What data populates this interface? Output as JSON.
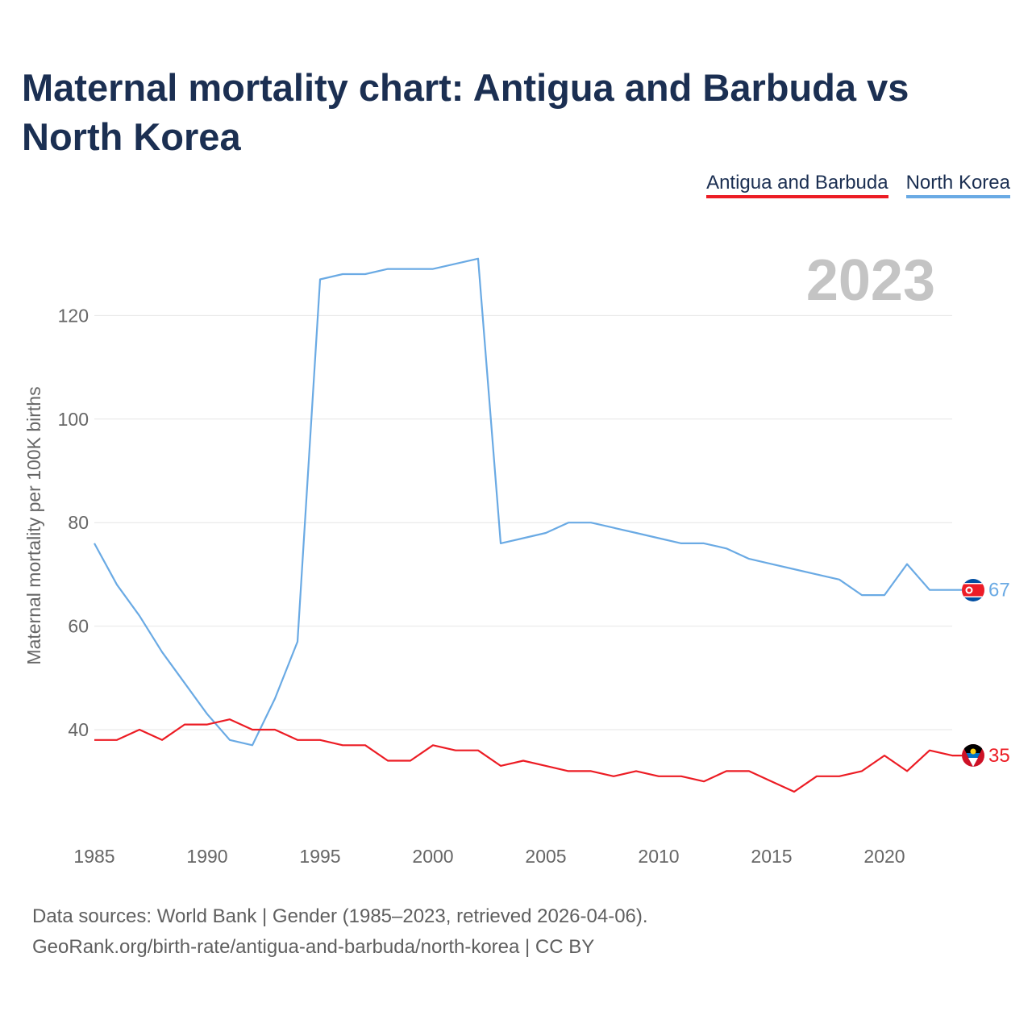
{
  "title": "Maternal mortality chart: Antigua and Barbuda vs North Korea",
  "legend": [
    {
      "name": "Antigua and Barbuda",
      "color": "#ec1c24"
    },
    {
      "name": "North Korea",
      "color": "#6aaae4"
    }
  ],
  "chart_data": {
    "type": "line",
    "title": "Maternal mortality chart: Antigua and Barbuda vs North Korea",
    "ylabel": "Maternal mortality per 100K births",
    "xlabel": "",
    "year_label": "2023",
    "xlim": [
      1985,
      2023
    ],
    "ylim": [
      20,
      140
    ],
    "xticks": [
      1985,
      1990,
      1995,
      2000,
      2005,
      2010,
      2015,
      2020
    ],
    "yticks": [
      40,
      60,
      80,
      100,
      120
    ],
    "grid": true,
    "x": [
      1985,
      1986,
      1987,
      1988,
      1989,
      1990,
      1991,
      1992,
      1993,
      1994,
      1995,
      1996,
      1997,
      1998,
      1999,
      2000,
      2001,
      2002,
      2003,
      2004,
      2005,
      2006,
      2007,
      2008,
      2009,
      2010,
      2011,
      2012,
      2013,
      2014,
      2015,
      2016,
      2017,
      2018,
      2019,
      2020,
      2021,
      2022,
      2023
    ],
    "series": [
      {
        "name": "North Korea",
        "color": "#6aaae4",
        "end_label": "67",
        "values": [
          76,
          68,
          62,
          55,
          49,
          43,
          38,
          37,
          46,
          57,
          127,
          128,
          128,
          129,
          129,
          129,
          130,
          131,
          76,
          77,
          78,
          80,
          80,
          79,
          78,
          77,
          76,
          76,
          75,
          73,
          72,
          71,
          70,
          69,
          66,
          66,
          72,
          67,
          67
        ]
      },
      {
        "name": "Antigua and Barbuda",
        "color": "#ec1c24",
        "end_label": "35",
        "values": [
          38,
          38,
          40,
          38,
          41,
          41,
          42,
          40,
          40,
          38,
          38,
          37,
          37,
          34,
          34,
          37,
          36,
          36,
          33,
          34,
          33,
          32,
          32,
          31,
          32,
          31,
          31,
          30,
          32,
          32,
          30,
          28,
          31,
          31,
          32,
          35,
          32,
          36,
          35
        ]
      }
    ]
  },
  "footer": {
    "line1": "Data sources: World Bank | Gender (1985–2023, retrieved 2026-04-06).",
    "line2": "GeoRank.org/birth-rate/antigua-and-barbuda/north-korea | CC BY"
  }
}
